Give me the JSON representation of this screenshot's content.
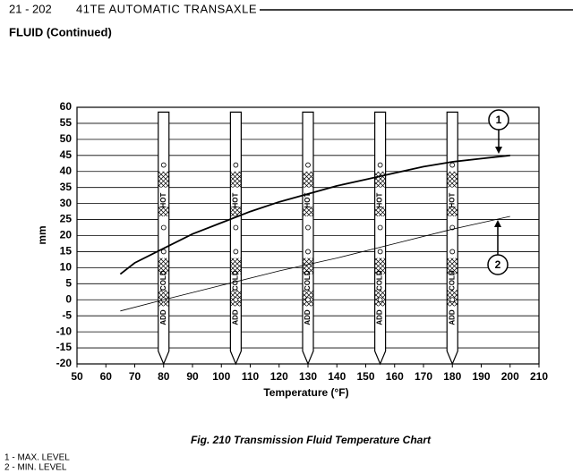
{
  "header": {
    "page": "21 - 202",
    "section": "41TE AUTOMATIC TRANSAXLE",
    "subtitle": "FLUID (Continued)"
  },
  "chart_data": {
    "type": "line",
    "xlabel": "Temperature (°F)",
    "ylabel": "mm",
    "xlim": [
      50,
      210
    ],
    "ylim": [
      -20,
      60
    ],
    "xticks": [
      50,
      60,
      70,
      80,
      90,
      100,
      110,
      120,
      130,
      140,
      150,
      160,
      170,
      180,
      190,
      200,
      210
    ],
    "yticks": [
      -20,
      -15,
      -10,
      -5,
      0,
      5,
      10,
      15,
      20,
      25,
      30,
      35,
      40,
      45,
      50,
      55,
      60
    ],
    "grid": true,
    "series": [
      {
        "name": "1 - MAX. LEVEL",
        "callout": "1",
        "color": "#000000",
        "x": [
          65,
          70,
          80,
          90,
          100,
          110,
          120,
          130,
          140,
          150,
          160,
          170,
          180,
          190,
          200
        ],
        "values": [
          8,
          11.5,
          16,
          20.5,
          24,
          27.5,
          30.5,
          33,
          35.5,
          37.5,
          39.5,
          41.5,
          43,
          44,
          45
        ]
      },
      {
        "name": "2 - MIN. LEVEL",
        "callout": "2",
        "color": "#000000",
        "x": [
          65,
          80,
          100,
          120,
          140,
          160,
          180,
          200
        ],
        "values": [
          -3.5,
          0,
          4.5,
          9,
          13,
          17.5,
          22,
          26
        ]
      }
    ],
    "dipsticks": {
      "x": [
        80,
        105,
        130,
        155,
        180
      ],
      "labels": [
        "HOT",
        "COLD",
        "ADD"
      ]
    },
    "caption": "Fig. 210 Transmission Fluid Temperature Chart"
  }
}
